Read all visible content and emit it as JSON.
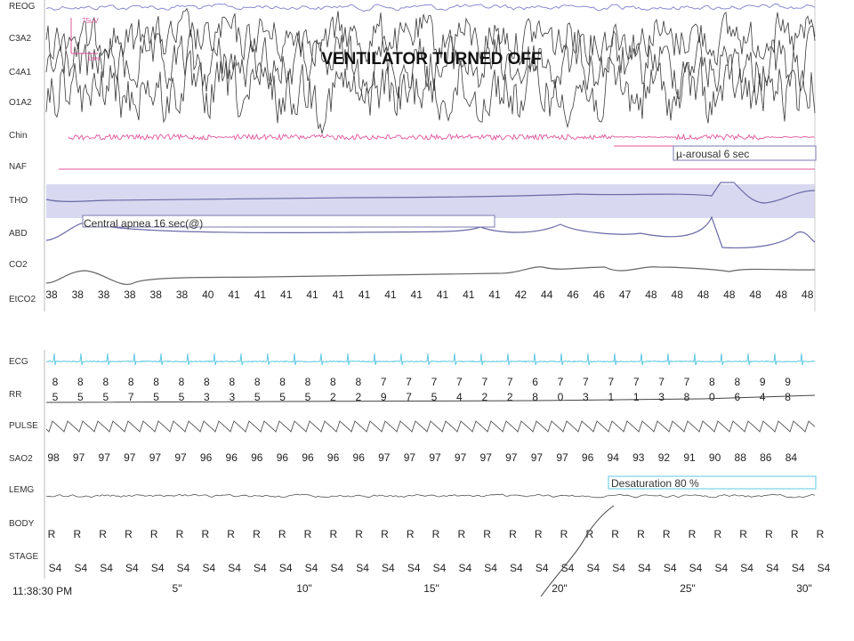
{
  "chart_data": {
    "type": "line",
    "title": "VENTILATOR TURNED OFF",
    "channels": [
      "REOG",
      "C3A2",
      "C4A1",
      "O1A2",
      "Chin",
      "NAF",
      "THO",
      "ABD",
      "CO2",
      "EtCO2",
      "ECG",
      "RR",
      "PULSE",
      "SAO2",
      "LEMG",
      "BODY",
      "STAGE"
    ],
    "calibration": [
      "75uV",
      "1sec"
    ],
    "annotations": {
      "arousal": "µ-arousal 6 sec",
      "apnea": "Central apnea 16 sec(@)",
      "desaturation": "Desaturation 80 %"
    },
    "etco2": [
      "38",
      "38",
      "38",
      "38",
      "38",
      "38",
      "40",
      "41",
      "41",
      "41",
      "41",
      "41",
      "41",
      "41",
      "41",
      "41",
      "41",
      "41",
      "42",
      "44",
      "46",
      "46",
      "47",
      "48",
      "48",
      "48",
      "48",
      "48",
      "48",
      "48"
    ],
    "rr_intervals": [
      [
        "8",
        "5"
      ],
      [
        "8",
        "5"
      ],
      [
        "8",
        "5"
      ],
      [
        "8",
        "7"
      ],
      [
        "8",
        "5"
      ],
      [
        "8",
        "5"
      ],
      [
        "8",
        "3"
      ],
      [
        "8",
        "3"
      ],
      [
        "8",
        "5"
      ],
      [
        "8",
        "5"
      ],
      [
        "8",
        "5"
      ],
      [
        "8",
        "2"
      ],
      [
        "8",
        "2"
      ],
      [
        "7",
        "9"
      ],
      [
        "7",
        "7"
      ],
      [
        "7",
        "5"
      ],
      [
        "7",
        "4"
      ],
      [
        "7",
        "2"
      ],
      [
        "7",
        "2"
      ],
      [
        "6",
        "8"
      ],
      [
        "7",
        "0"
      ],
      [
        "7",
        "3"
      ],
      [
        "7",
        "1"
      ],
      [
        "7",
        "1"
      ],
      [
        "7",
        "3"
      ],
      [
        "7",
        "8"
      ],
      [
        "8",
        "0"
      ],
      [
        "8",
        "6"
      ],
      [
        "9",
        "4"
      ],
      [
        "9",
        "8"
      ]
    ],
    "sao2": [
      "98",
      "97",
      "97",
      "97",
      "97",
      "97",
      "96",
      "96",
      "96",
      "96",
      "96",
      "96",
      "96",
      "97",
      "97",
      "97",
      "97",
      "97",
      "97",
      "97",
      "97",
      "96",
      "94",
      "93",
      "92",
      "91",
      "90",
      "88",
      "86",
      "84"
    ],
    "body": [
      "R",
      "R",
      "R",
      "R",
      "R",
      "R",
      "R",
      "R",
      "R",
      "R",
      "R",
      "R",
      "R",
      "R",
      "R",
      "R",
      "R",
      "R",
      "R",
      "R",
      "R",
      "R",
      "R",
      "R",
      "R",
      "R",
      "R",
      "R",
      "R",
      "R",
      "R"
    ],
    "stage": [
      "S4",
      "S4",
      "S4",
      "S4",
      "S4",
      "S4",
      "S4",
      "S4",
      "S4",
      "S4",
      "S4",
      "S4",
      "S4",
      "S4",
      "S4",
      "S4",
      "S4",
      "S4",
      "S4",
      "S4",
      "S4",
      "S4",
      "S4",
      "S4",
      "S4",
      "S4",
      "S4",
      "S4",
      "S4",
      "S4",
      "S4"
    ],
    "time_axis": {
      "start": "11:38:30 PM",
      "ticks": [
        "5\"",
        "10\"",
        "15\"",
        "20\"",
        "25\"",
        "30\""
      ]
    },
    "colors": {
      "eeg": "#3a3a3a",
      "chin": "#e0559a",
      "naf": "#e0559a",
      "resp": "#6a6aa8",
      "band": "#d8d8f0",
      "ecg": "#5fc8e4",
      "reog": "#8a8ad0"
    }
  }
}
